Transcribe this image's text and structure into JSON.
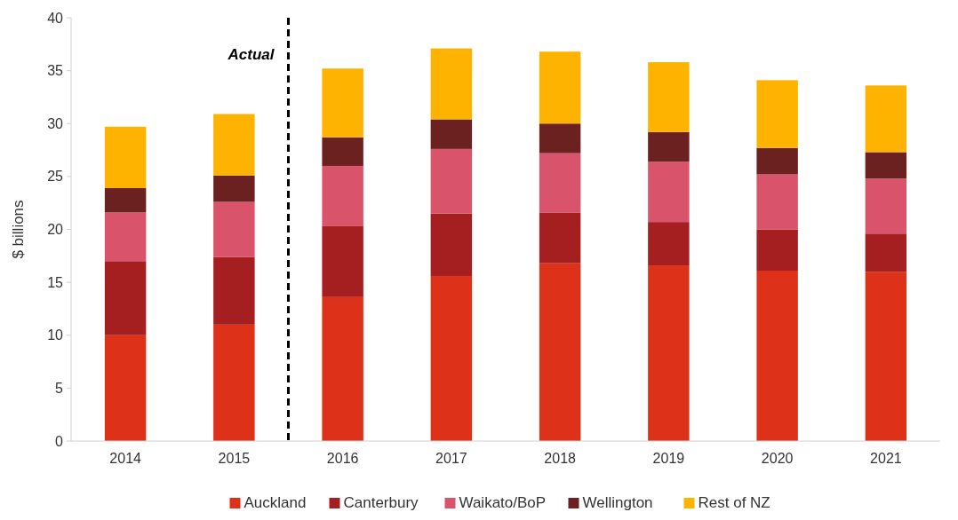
{
  "chart_data": {
    "type": "bar",
    "stacked": true,
    "ylabel": "$ billions",
    "categories": [
      "2014",
      "2015",
      "2016",
      "2017",
      "2018",
      "2019",
      "2020",
      "2021"
    ],
    "series": [
      {
        "name": "Auckland",
        "color": "#de3119",
        "values": [
          10.0,
          11.0,
          13.6,
          15.6,
          16.8,
          16.6,
          16.1,
          16.0
        ]
      },
      {
        "name": "Canterbury",
        "color": "#a51e20",
        "values": [
          7.0,
          6.4,
          6.7,
          5.9,
          4.8,
          4.1,
          3.9,
          3.6
        ]
      },
      {
        "name": "Waikato/BoP",
        "color": "#d9536a",
        "values": [
          4.6,
          5.2,
          5.7,
          6.1,
          5.6,
          5.7,
          5.2,
          5.2
        ]
      },
      {
        "name": "Wellington",
        "color": "#6b211f",
        "values": [
          2.3,
          2.5,
          2.7,
          2.8,
          2.8,
          2.8,
          2.5,
          2.5
        ]
      },
      {
        "name": "Rest of NZ",
        "color": "#fdb300",
        "values": [
          5.8,
          5.8,
          6.5,
          6.7,
          6.8,
          6.6,
          6.4,
          6.3
        ]
      }
    ],
    "ylim": [
      0,
      40
    ],
    "yticks": [
      0,
      5,
      10,
      15,
      20,
      25,
      30,
      35,
      40
    ],
    "grid": false,
    "legend": "bottom",
    "annotations": [
      "Actual"
    ]
  }
}
